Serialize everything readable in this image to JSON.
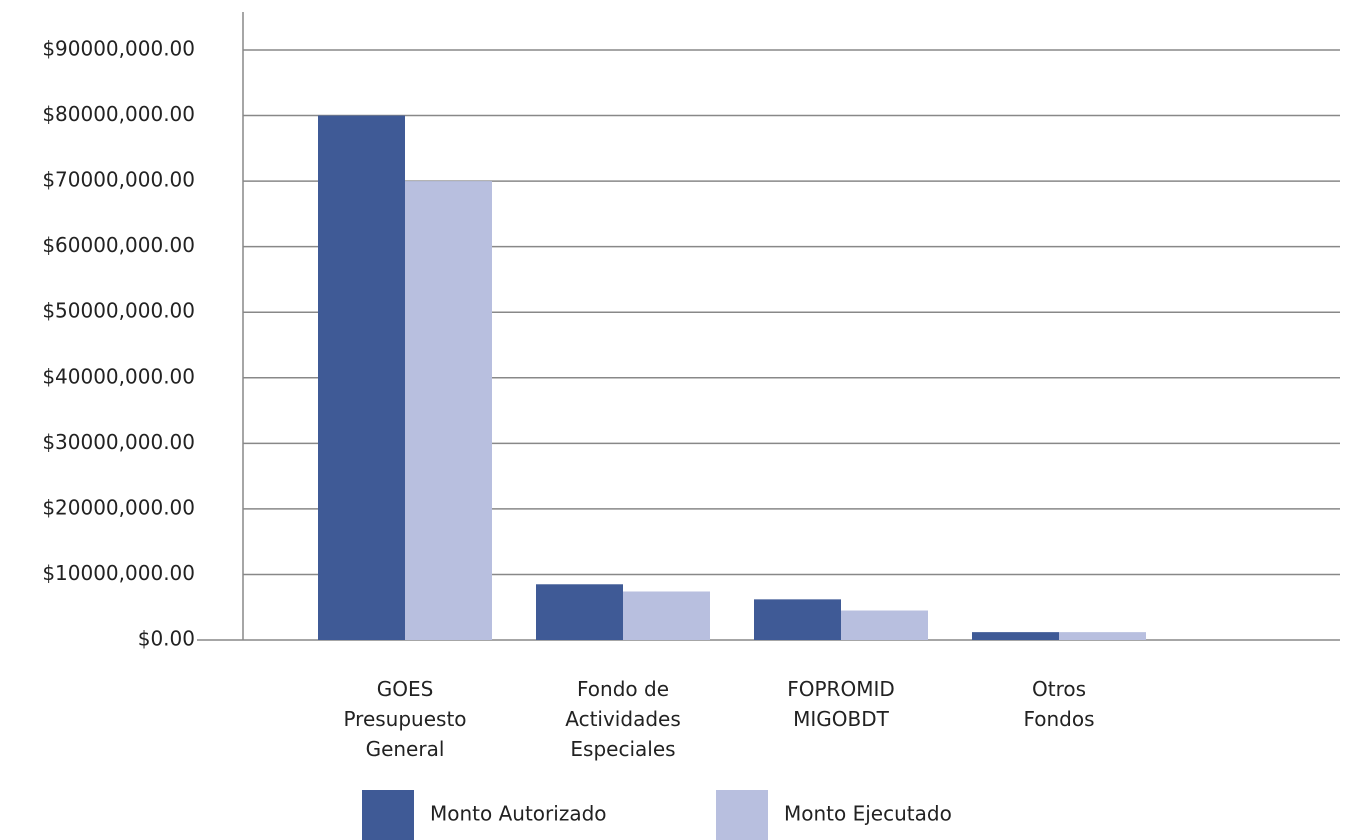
{
  "chart_data": {
    "type": "bar",
    "categories": [
      [
        "GOES",
        "Presupuesto",
        "General"
      ],
      [
        "Fondo de",
        "Actividades",
        "Especiales"
      ],
      [
        "FOPROMID",
        "MIGOBDT"
      ],
      [
        "Otros",
        "Fondos"
      ]
    ],
    "series": [
      {
        "name": "Monto Autorizado",
        "color": "#3f5a96",
        "values": [
          80000000,
          8500000,
          6200000,
          1200000
        ]
      },
      {
        "name": "Monto Ejecutado",
        "color": "#b8bfdf",
        "values": [
          70000000,
          7400000,
          4500000,
          1200000
        ]
      }
    ],
    "ylim": [
      0,
      90000000
    ],
    "yticks": [
      {
        "value": 0,
        "label": "$0.00"
      },
      {
        "value": 10000000,
        "label": "$10000,000.00"
      },
      {
        "value": 20000000,
        "label": "$20000,000.00"
      },
      {
        "value": 30000000,
        "label": "$30000,000.00"
      },
      {
        "value": 40000000,
        "label": "$40000,000.00"
      },
      {
        "value": 50000000,
        "label": "$50000,000.00"
      },
      {
        "value": 60000000,
        "label": "$60000,000.00"
      },
      {
        "value": 70000000,
        "label": "$70000,000.00"
      },
      {
        "value": 80000000,
        "label": "$80000,000.00"
      },
      {
        "value": 90000000,
        "label": "$90000,000.00"
      }
    ],
    "grid": true,
    "legend": "bottom"
  }
}
